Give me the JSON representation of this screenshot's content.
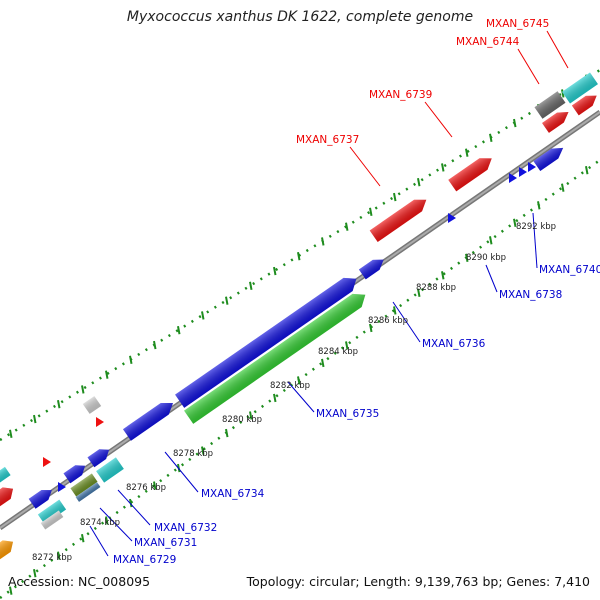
{
  "title": "Myxococcus xanthus DK 1622, complete genome",
  "accession": "Accession: NC_008095",
  "topology": "Topology: circular; Length: 9,139,763 bp; Genes: 7,410",
  "colors": {
    "red": "#ee1111",
    "blue": "#1010dd",
    "green": "#33cc33",
    "cyan": "#22cccc",
    "grey": "#666666",
    "lightgrey": "#cccccc",
    "orange": "#ff9900",
    "olive": "#6b8e23",
    "steel": "#4477aa",
    "dots": "#1e8c1e",
    "backbone": "#888888",
    "label_red": "#ee0000",
    "label_blue": "#0000cc"
  },
  "kbp_ticks": [
    "8272 kbp",
    "8274 kbp",
    "8276 kbp",
    "8278 kbp",
    "8280 kbp",
    "8282 kbp",
    "8284 kbp",
    "8286 kbp",
    "8288 kbp",
    "8290 kbp",
    "8292 kbp"
  ],
  "gene_labels": {
    "outer": [
      "MXAN_6737",
      "MXAN_6739",
      "MXAN_6744",
      "MXAN_6745"
    ],
    "inner": [
      "MXAN_6729",
      "MXAN_6731",
      "MXAN_6732",
      "MXAN_6734",
      "MXAN_6735",
      "MXAN_6736",
      "MXAN_6738",
      "MXAN_6740"
    ]
  }
}
